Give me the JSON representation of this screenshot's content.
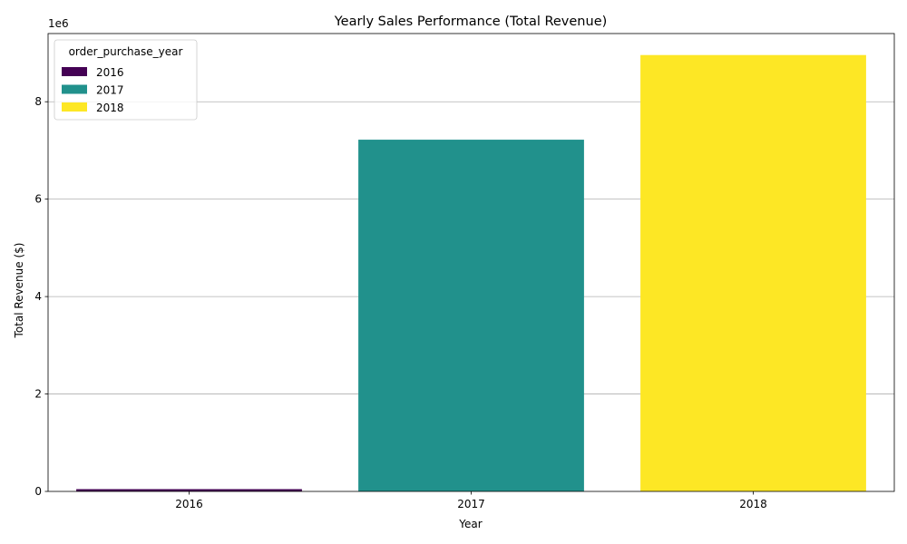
{
  "chart_data": {
    "type": "bar",
    "title": "Yearly Sales Performance (Total Revenue)",
    "xlabel": "Year",
    "ylabel": "Total Revenue ($)",
    "y_offset_label": "1e6",
    "categories": [
      "2016",
      "2017",
      "2018"
    ],
    "values": [
      46653.74,
      7221002.76,
      8958715.75
    ],
    "colors": [
      "#440154",
      "#21918c",
      "#fde725"
    ],
    "ylim": [
      0,
      9400000
    ],
    "yticks": [
      0,
      2000000,
      4000000,
      6000000,
      8000000
    ],
    "ytick_labels": [
      "0",
      "2",
      "4",
      "6",
      "8"
    ],
    "grid": "y",
    "legend": {
      "title": "order_purchase_year",
      "placement": "top-left",
      "entries": [
        "2016",
        "2017",
        "2018"
      ]
    }
  }
}
